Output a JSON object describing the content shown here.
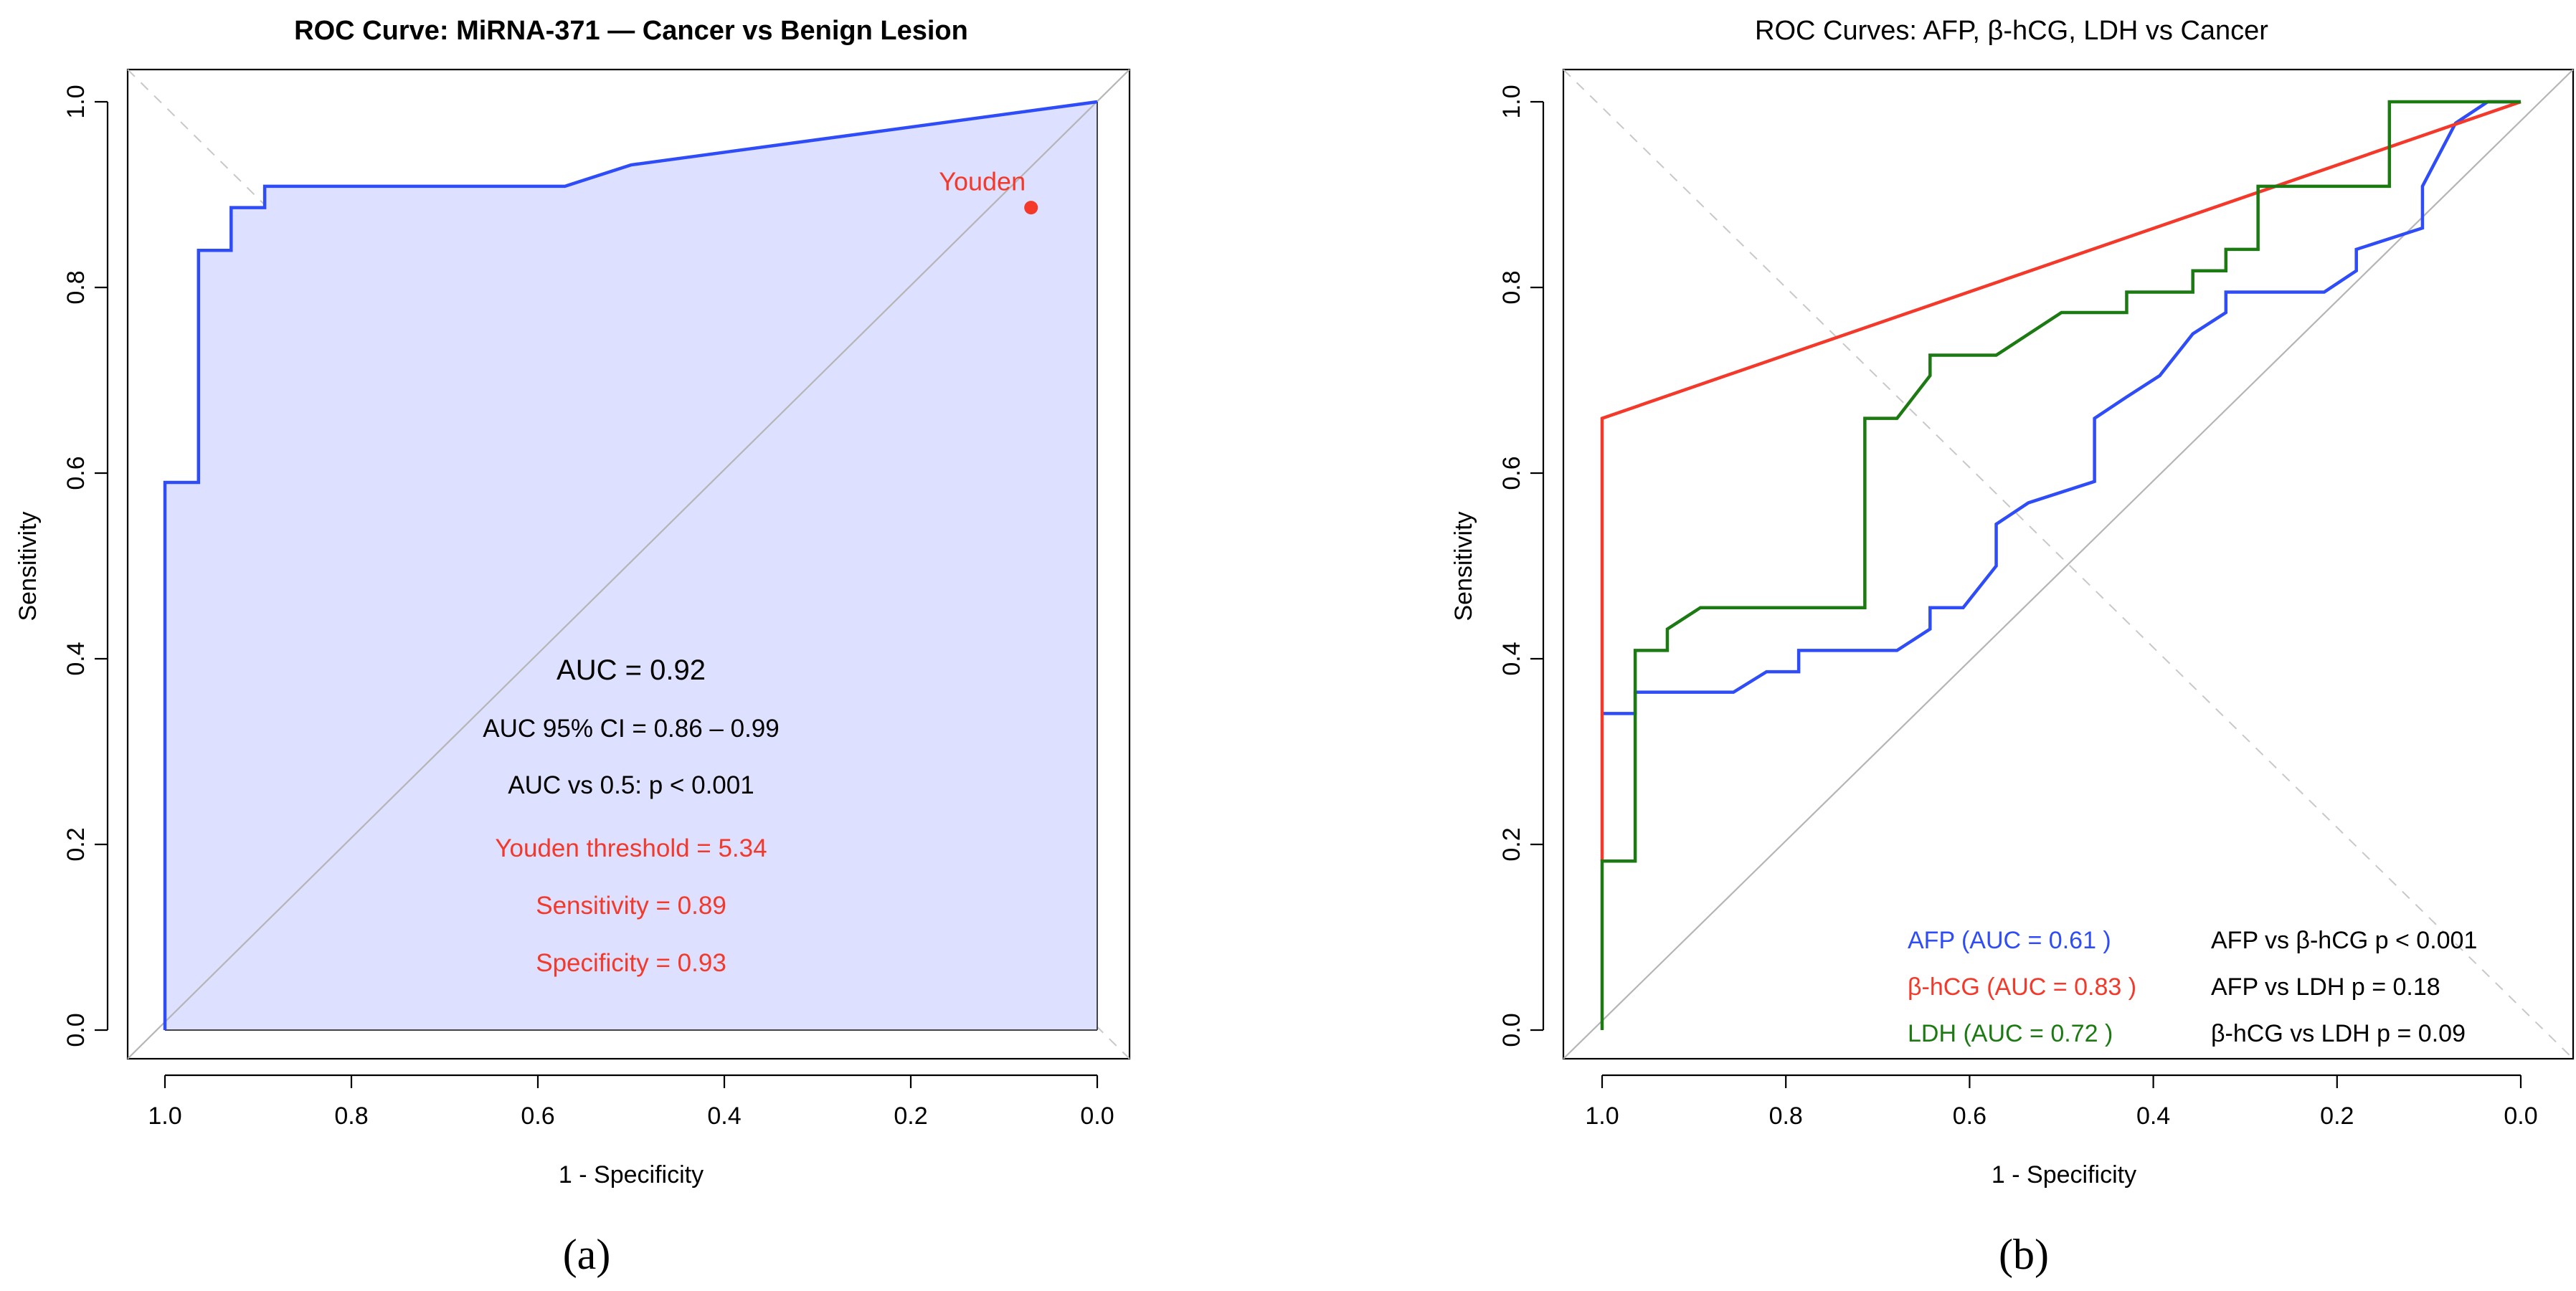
{
  "chart_data": [
    {
      "type": "line",
      "panel_label": "(a)",
      "title": "ROC Curve: MiRNA-371 — Cancer vs Benign Lesion",
      "xlabel": "1 - Specificity",
      "ylabel": "Sensitivity",
      "xlim": [
        1.0,
        0.0
      ],
      "ylim": [
        0.0,
        1.0
      ],
      "x_reversed": true,
      "xticks": [
        "1.0",
        "0.8",
        "0.6",
        "0.4",
        "0.2",
        "0.0"
      ],
      "yticks": [
        "0.0",
        "0.2",
        "0.4",
        "0.6",
        "0.8",
        "1.0"
      ],
      "grid": false,
      "area_fill": true,
      "colors": {
        "curve": "#2e4cf7",
        "fill": "#dde0ff",
        "annotation": "#f4382a",
        "reference": "#b5b5b5"
      },
      "series": [
        {
          "x": [
            1.0,
            1.0,
            0.964,
            0.964,
            0.929,
            0.929,
            0.893,
            0.893,
            0.571,
            0.5,
            0.0
          ],
          "y": [
            0.0,
            0.59,
            0.59,
            0.84,
            0.84,
            0.886,
            0.886,
            0.909,
            0.909,
            0.932,
            1.0
          ]
        }
      ],
      "youden_point": {
        "label": "Youden",
        "x": 0.071,
        "y": 0.886
      },
      "annotations": [
        {
          "text": "AUC = 0.92",
          "color": "#000000"
        },
        {
          "text": "AUC 95% CI = 0.86 – 0.99",
          "color": "#000000"
        },
        {
          "text": "AUC vs 0.5: p < 0.001",
          "color": "#000000"
        },
        {
          "text": "Youden threshold = 5.34",
          "color": "#f4382a"
        },
        {
          "text": "Sensitivity = 0.89",
          "color": "#f4382a"
        },
        {
          "text": "Specificity = 0.93",
          "color": "#f4382a"
        }
      ]
    },
    {
      "type": "line",
      "panel_label": "(b)",
      "title": "ROC Curves: AFP, β-hCG, LDH vs Cancer",
      "xlabel": "1 - Specificity",
      "ylabel": "Sensitivity",
      "xlim": [
        1.0,
        0.0
      ],
      "ylim": [
        0.0,
        1.0
      ],
      "x_reversed": true,
      "xticks": [
        "1.0",
        "0.8",
        "0.6",
        "0.4",
        "0.2",
        "0.0"
      ],
      "yticks": [
        "0.0",
        "0.2",
        "0.4",
        "0.6",
        "0.8",
        "1.0"
      ],
      "grid": false,
      "colors": {
        "reference": "#b5b5b5"
      },
      "series": [
        {
          "name": "AFP",
          "legend": "AFP (AUC = 0.61 )",
          "color": "#2e4cf7",
          "x": [
            1.0,
            0.964,
            0.964,
            0.929,
            0.929,
            0.857,
            0.821,
            0.786,
            0.786,
            0.679,
            0.643,
            0.643,
            0.607,
            0.571,
            0.571,
            0.536,
            0.464,
            0.464,
            0.429,
            0.393,
            0.357,
            0.321,
            0.321,
            0.214,
            0.179,
            0.179,
            0.107,
            0.107,
            0.071,
            0.036,
            0.0
          ],
          "y": [
            0.341,
            0.341,
            0.364,
            0.364,
            0.364,
            0.364,
            0.386,
            0.386,
            0.409,
            0.409,
            0.432,
            0.455,
            0.455,
            0.5,
            0.545,
            0.568,
            0.591,
            0.659,
            0.682,
            0.705,
            0.75,
            0.773,
            0.795,
            0.795,
            0.818,
            0.841,
            0.864,
            0.909,
            0.977,
            1.0,
            1.0
          ]
        },
        {
          "name": "β-hCG",
          "legend": "β-hCG (AUC = 0.83 )",
          "color": "#f4382a",
          "x": [
            1.0,
            1.0,
            0.0
          ],
          "y": [
            0.182,
            0.659,
            1.0
          ]
        },
        {
          "name": "LDH",
          "legend": "LDH (AUC = 0.72 )",
          "color": "#1c7a12",
          "x": [
            1.0,
            1.0,
            0.964,
            0.964,
            0.929,
            0.929,
            0.893,
            0.714,
            0.714,
            0.679,
            0.643,
            0.643,
            0.571,
            0.5,
            0.429,
            0.429,
            0.357,
            0.357,
            0.321,
            0.321,
            0.286,
            0.286,
            0.143,
            0.143,
            0.071,
            0.036,
            0.0
          ],
          "y": [
            0.0,
            0.182,
            0.182,
            0.409,
            0.409,
            0.432,
            0.455,
            0.455,
            0.659,
            0.659,
            0.705,
            0.727,
            0.727,
            0.773,
            0.773,
            0.795,
            0.795,
            0.818,
            0.818,
            0.841,
            0.841,
            0.909,
            0.909,
            1.0,
            1.0,
            1.0,
            1.0
          ]
        }
      ],
      "comparisons": [
        "AFP vs β-hCG  p < 0.001",
        "AFP vs LDH  p = 0.18",
        "β-hCG vs LDH  p = 0.09"
      ]
    }
  ]
}
